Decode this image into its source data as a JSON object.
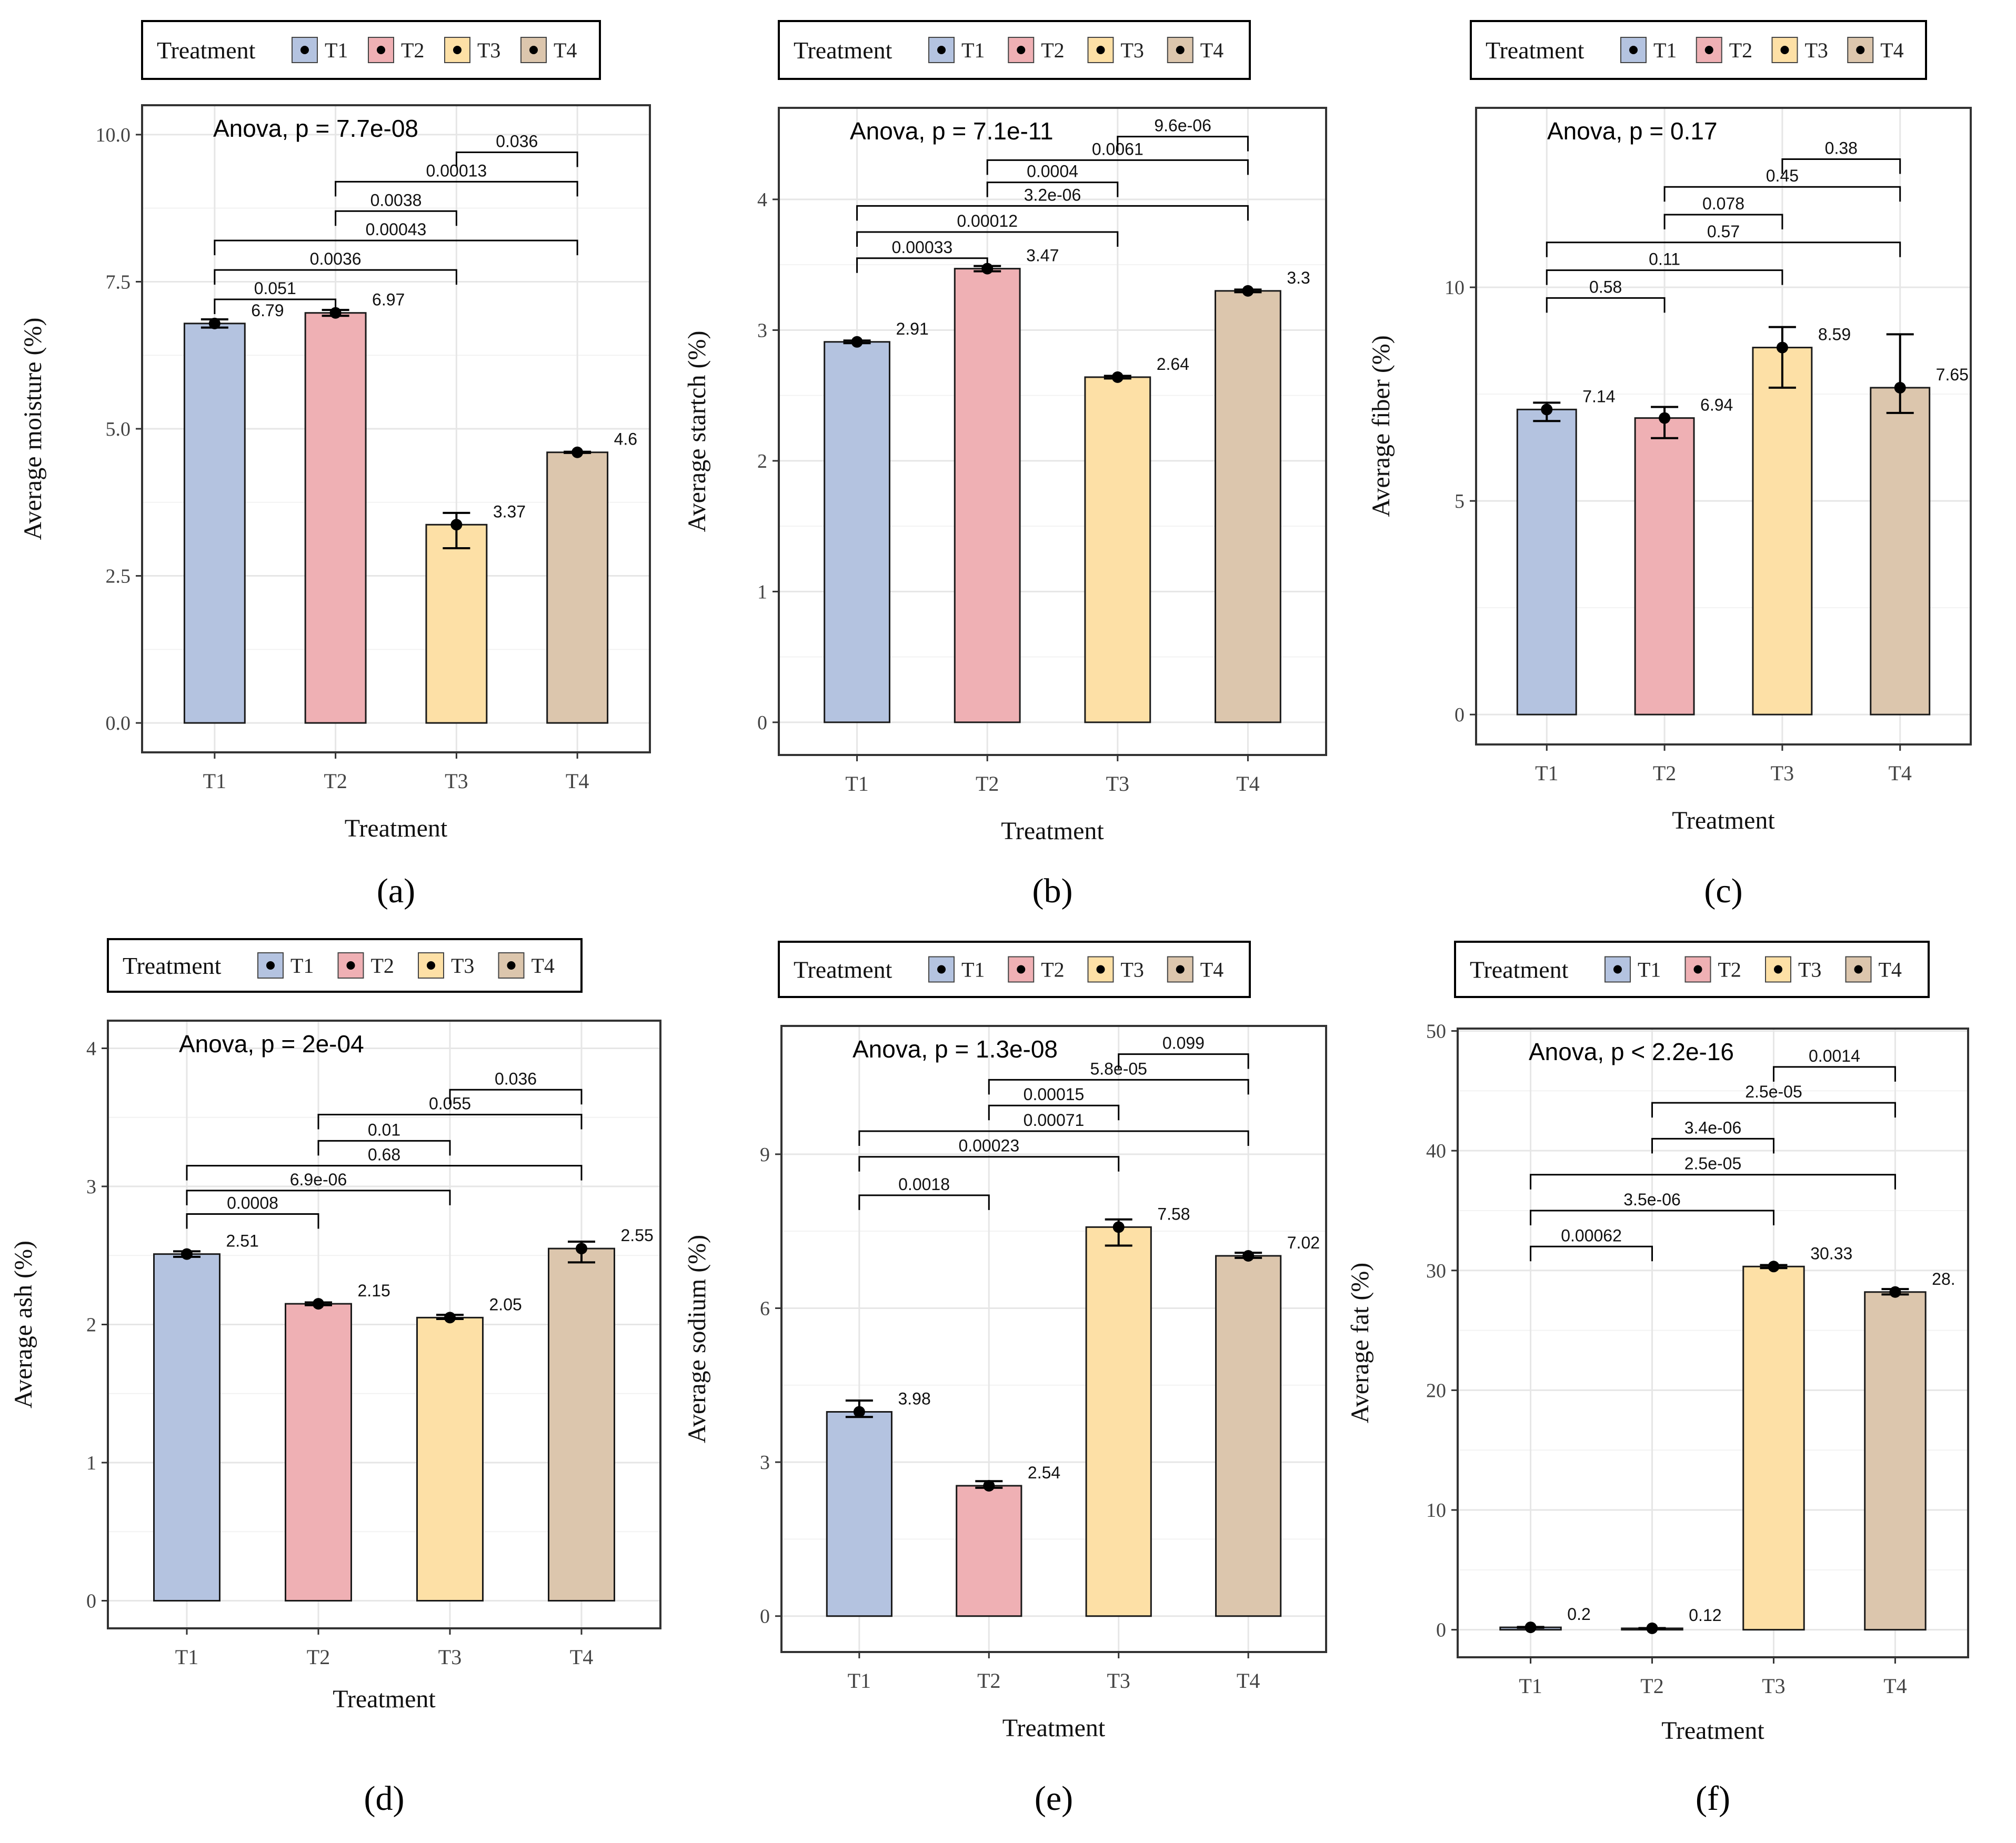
{
  "figure": {
    "treatment_colors": {
      "T1": "#b4c3e0",
      "T2": "#efb0b4",
      "T3": "#fde0a6",
      "T4": "#dcc6ad"
    },
    "legend_title": "Treatment",
    "legend_items": [
      "T1",
      "T2",
      "T3",
      "T4"
    ]
  },
  "chart_data": [
    {
      "panel_label": "(a)",
      "type": "bar",
      "title": "",
      "xlabel": "Treatment",
      "ylabel": "Average moisture (%)",
      "categories": [
        "T1",
        "T2",
        "T3",
        "T4"
      ],
      "values": [
        6.79,
        6.97,
        3.37,
        4.6
      ],
      "value_labels": [
        "6.79",
        "6.97",
        "3.37",
        "4.6"
      ],
      "error_bars": [
        [
          6.72,
          6.86
        ],
        [
          6.92,
          7.02
        ],
        [
          2.97,
          3.57
        ],
        [
          4.59,
          4.61
        ]
      ],
      "ylim": [
        -0.5,
        10.5
      ],
      "yticks": [
        0,
        2.5,
        5,
        7.5,
        10
      ],
      "ytick_labels": [
        "0.0",
        "2.5",
        "5.0",
        "7.5",
        "10.0"
      ],
      "anova": "Anova, p = 7.7e-08",
      "comparisons": [
        {
          "from": "T1",
          "to": "T2",
          "label": "0.051",
          "y": 7.2
        },
        {
          "from": "T1",
          "to": "T3",
          "label": "0.0036",
          "y": 7.7
        },
        {
          "from": "T1",
          "to": "T4",
          "label": "0.00043",
          "y": 8.2
        },
        {
          "from": "T2",
          "to": "T3",
          "label": "0.0038",
          "y": 8.7
        },
        {
          "from": "T2",
          "to": "T4",
          "label": "0.00013",
          "y": 9.2
        },
        {
          "from": "T3",
          "to": "T4",
          "label": "0.036",
          "y": 9.7
        }
      ]
    },
    {
      "panel_label": "(b)",
      "type": "bar",
      "title": "",
      "xlabel": "Treatment",
      "ylabel": "Average startch (%)",
      "categories": [
        "T1",
        "T2",
        "T3",
        "T4"
      ],
      "values": [
        2.91,
        3.47,
        2.64,
        3.3
      ],
      "value_labels": [
        "2.91",
        "3.47",
        "2.64",
        "3.3"
      ],
      "error_bars": [
        [
          2.9,
          2.92
        ],
        [
          3.45,
          3.49
        ],
        [
          2.63,
          2.65
        ],
        [
          3.29,
          3.31
        ]
      ],
      "ylim": [
        -0.25,
        4.7
      ],
      "yticks": [
        0,
        1,
        2,
        3,
        4
      ],
      "ytick_labels": [
        "0",
        "1",
        "2",
        "3",
        "4"
      ],
      "anova": "Anova, p = 7.1e-11",
      "comparisons": [
        {
          "from": "T1",
          "to": "T2",
          "label": "0.00033",
          "y": 3.55
        },
        {
          "from": "T1",
          "to": "T3",
          "label": "0.00012",
          "y": 3.75
        },
        {
          "from": "T1",
          "to": "T4",
          "label": "3.2e-06",
          "y": 3.95
        },
        {
          "from": "T2",
          "to": "T3",
          "label": "0.0004",
          "y": 4.13
        },
        {
          "from": "T2",
          "to": "T4",
          "label": "0.0061",
          "y": 4.3
        },
        {
          "from": "T3",
          "to": "T4",
          "label": "9.6e-06",
          "y": 4.48
        }
      ]
    },
    {
      "panel_label": "(c)",
      "type": "bar",
      "title": "",
      "xlabel": "Treatment",
      "ylabel": "Average fiber (%)",
      "categories": [
        "T1",
        "T2",
        "T3",
        "T4"
      ],
      "values": [
        7.14,
        6.94,
        8.59,
        7.65
      ],
      "value_labels": [
        "7.14",
        "6.94",
        "8.59",
        "7.65"
      ],
      "error_bars": [
        [
          6.87,
          7.3
        ],
        [
          6.47,
          7.2
        ],
        [
          7.65,
          9.07
        ],
        [
          7.06,
          8.9
        ]
      ],
      "ylim": [
        -0.7,
        14.2
      ],
      "yticks": [
        0,
        5,
        10
      ],
      "ytick_labels": [
        "0",
        "5",
        "10"
      ],
      "anova": "Anova, p = 0.17",
      "comparisons": [
        {
          "from": "T1",
          "to": "T2",
          "label": "0.58",
          "y": 9.75
        },
        {
          "from": "T1",
          "to": "T3",
          "label": "0.11",
          "y": 10.4
        },
        {
          "from": "T1",
          "to": "T4",
          "label": "0.57",
          "y": 11.05
        },
        {
          "from": "T2",
          "to": "T3",
          "label": "0.078",
          "y": 11.7
        },
        {
          "from": "T2",
          "to": "T4",
          "label": "0.45",
          "y": 12.35
        },
        {
          "from": "T3",
          "to": "T4",
          "label": "0.38",
          "y": 13.0
        }
      ]
    },
    {
      "panel_label": "(d)",
      "type": "bar",
      "title": "",
      "xlabel": "Treatment",
      "ylabel": "Average ash (%)",
      "categories": [
        "T1",
        "T2",
        "T3",
        "T4"
      ],
      "values": [
        2.51,
        2.15,
        2.05,
        2.55
      ],
      "value_labels": [
        "2.51",
        "2.15",
        "2.05",
        "2.55"
      ],
      "error_bars": [
        [
          2.49,
          2.53
        ],
        [
          2.14,
          2.16
        ],
        [
          2.04,
          2.07
        ],
        [
          2.45,
          2.6
        ]
      ],
      "ylim": [
        -0.2,
        4.2
      ],
      "yticks": [
        0,
        1,
        2,
        3,
        4
      ],
      "ytick_labels": [
        "0",
        "1",
        "2",
        "3",
        "4"
      ],
      "anova": "Anova, p = 2e-04",
      "comparisons": [
        {
          "from": "T1",
          "to": "T2",
          "label": "0.0008",
          "y": 2.8
        },
        {
          "from": "T1",
          "to": "T3",
          "label": "6.9e-06",
          "y": 2.97
        },
        {
          "from": "T1",
          "to": "T4",
          "label": "0.68",
          "y": 3.15
        },
        {
          "from": "T2",
          "to": "T3",
          "label": "0.01",
          "y": 3.33
        },
        {
          "from": "T2",
          "to": "T4",
          "label": "0.055",
          "y": 3.52
        },
        {
          "from": "T3",
          "to": "T4",
          "label": "0.036",
          "y": 3.7
        }
      ]
    },
    {
      "panel_label": "(e)",
      "type": "bar",
      "title": "",
      "xlabel": "Treatment",
      "ylabel": "Average sodium (%)",
      "categories": [
        "T1",
        "T2",
        "T3",
        "T4"
      ],
      "values": [
        3.98,
        2.54,
        7.58,
        7.02
      ],
      "value_labels": [
        "3.98",
        "2.54",
        "7.58",
        "7.02"
      ],
      "error_bars": [
        [
          3.88,
          4.2
        ],
        [
          2.5,
          2.63
        ],
        [
          7.22,
          7.73
        ],
        [
          6.98,
          7.08
        ]
      ],
      "ylim": [
        -0.7,
        11.5
      ],
      "yticks": [
        0,
        3,
        6,
        9
      ],
      "ytick_labels": [
        "0",
        "3",
        "6",
        "9"
      ],
      "anova": "Anova, p = 1.3e-08",
      "comparisons": [
        {
          "from": "T1",
          "to": "T2",
          "label": "0.0018",
          "y": 8.2
        },
        {
          "from": "T1",
          "to": "T3",
          "label": "0.00023",
          "y": 8.95
        },
        {
          "from": "T1",
          "to": "T4",
          "label": "0.00071",
          "y": 9.45
        },
        {
          "from": "T2",
          "to": "T3",
          "label": "0.00015",
          "y": 9.95
        },
        {
          "from": "T2",
          "to": "T4",
          "label": "5.8e-05",
          "y": 10.45
        },
        {
          "from": "T3",
          "to": "T4",
          "label": "0.099",
          "y": 10.95
        }
      ]
    },
    {
      "panel_label": "(f)",
      "type": "bar",
      "title": "",
      "xlabel": "Treatment",
      "ylabel": "Average fat (%)",
      "categories": [
        "T1",
        "T2",
        "T3",
        "T4"
      ],
      "values": [
        0.2,
        0.12,
        30.33,
        28.2
      ],
      "value_labels": [
        "0.2",
        "0.12",
        "30.33",
        "28."
      ],
      "error_bars": [
        [
          0.17,
          0.23
        ],
        [
          0.1,
          0.14
        ],
        [
          30.2,
          30.45
        ],
        [
          28.0,
          28.45
        ]
      ],
      "ylim": [
        -2.3,
        50.2
      ],
      "yticks": [
        0,
        10,
        20,
        30,
        40,
        50
      ],
      "ytick_labels": [
        "0",
        "10",
        "20",
        "30",
        "40",
        "50"
      ],
      "anova": "Anova, p < 2.2e-16",
      "comparisons": [
        {
          "from": "T1",
          "to": "T2",
          "label": "0.00062",
          "y": 32.0
        },
        {
          "from": "T1",
          "to": "T3",
          "label": "3.5e-06",
          "y": 35.0
        },
        {
          "from": "T1",
          "to": "T4",
          "label": "2.5e-05",
          "y": 38.0
        },
        {
          "from": "T2",
          "to": "T3",
          "label": "3.4e-06",
          "y": 41.0
        },
        {
          "from": "T2",
          "to": "T4",
          "label": "2.5e-05",
          "y": 44.0
        },
        {
          "from": "T3",
          "to": "T4",
          "label": "0.0014",
          "y": 47.0
        }
      ]
    }
  ]
}
